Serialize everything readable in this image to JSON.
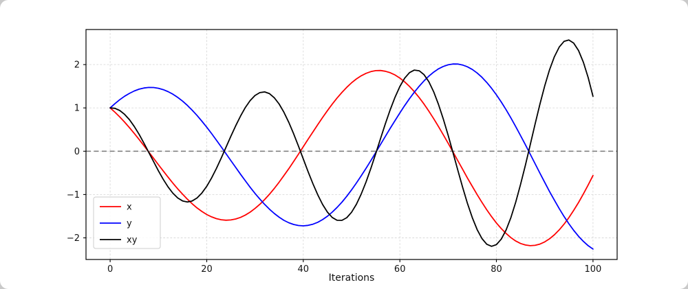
{
  "figure": {
    "background": "#ffffff",
    "page_background": "#c9c9c9"
  },
  "chart_data": {
    "type": "line",
    "title": "",
    "xlabel": "Iterations",
    "ylabel": "",
    "xlim": [
      -5,
      105
    ],
    "ylim": [
      -2.5,
      2.81
    ],
    "xticks": [
      0,
      20,
      40,
      60,
      80,
      100
    ],
    "yticks": [
      -2,
      -1,
      0,
      1,
      2
    ],
    "xtick_labels": [
      "0",
      "20",
      "40",
      "60",
      "80",
      "100"
    ],
    "ytick_labels": [
      "−2",
      "−1",
      "0",
      "1",
      "2"
    ],
    "grid": true,
    "legend_position": "lower left",
    "zero_line": {
      "y": 0,
      "style": "dashed",
      "color": "#808080"
    },
    "x": [
      0,
      1,
      2,
      3,
      4,
      5,
      6,
      7,
      8,
      9,
      10,
      11,
      12,
      13,
      14,
      15,
      16,
      17,
      18,
      19,
      20,
      21,
      22,
      23,
      24,
      25,
      26,
      27,
      28,
      29,
      30,
      31,
      32,
      33,
      34,
      35,
      36,
      37,
      38,
      39,
      40,
      41,
      42,
      43,
      44,
      45,
      46,
      47,
      48,
      49,
      50,
      51,
      52,
      53,
      54,
      55,
      56,
      57,
      58,
      59,
      60,
      61,
      62,
      63,
      64,
      65,
      66,
      67,
      68,
      69,
      70,
      71,
      72,
      73,
      74,
      75,
      76,
      77,
      78,
      79,
      80,
      81,
      82,
      83,
      84,
      85,
      86,
      87,
      88,
      89,
      90,
      91,
      92,
      93,
      94,
      95,
      96,
      97,
      98,
      99,
      100
    ],
    "series": [
      {
        "name": "x",
        "color": "#ff0000",
        "values": [
          1.0,
          0.9,
          0.79,
          0.671,
          0.544,
          0.41,
          0.271,
          0.128,
          -0.018,
          -0.165,
          -0.312,
          -0.457,
          -0.599,
          -0.737,
          -0.869,
          -0.993,
          -1.108,
          -1.214,
          -1.309,
          -1.391,
          -1.461,
          -1.516,
          -1.557,
          -1.583,
          -1.593,
          -1.587,
          -1.565,
          -1.528,
          -1.475,
          -1.406,
          -1.323,
          -1.226,
          -1.115,
          -0.993,
          -0.859,
          -0.715,
          -0.562,
          -0.403,
          -0.238,
          -0.069,
          0.103,
          0.275,
          0.447,
          0.615,
          0.779,
          0.937,
          1.087,
          1.228,
          1.358,
          1.476,
          1.58,
          1.669,
          1.742,
          1.799,
          1.839,
          1.86,
          1.863,
          1.847,
          1.813,
          1.76,
          1.69,
          1.601,
          1.496,
          1.375,
          1.238,
          1.088,
          0.926,
          0.753,
          0.57,
          0.38,
          0.184,
          -0.016,
          -0.217,
          -0.418,
          -0.618,
          -0.812,
          -1.001,
          -1.182,
          -1.353,
          -1.511,
          -1.657,
          -1.787,
          -1.9,
          -1.996,
          -2.073,
          -2.13,
          -2.166,
          -2.181,
          -2.174,
          -2.145,
          -2.095,
          -2.023,
          -1.93,
          -1.817,
          -1.685,
          -1.534,
          -1.367,
          -1.184,
          -0.988,
          -0.779,
          -0.561
        ]
      },
      {
        "name": "y",
        "color": "#0000ff",
        "values": [
          1.0,
          1.1,
          1.19,
          1.269,
          1.336,
          1.391,
          1.432,
          1.459,
          1.472,
          1.47,
          1.453,
          1.422,
          1.376,
          1.317,
          1.243,
          1.156,
          1.057,
          0.946,
          0.825,
          0.694,
          0.554,
          0.408,
          0.257,
          0.101,
          -0.057,
          -0.216,
          -0.375,
          -0.532,
          -0.684,
          -0.832,
          -0.973,
          -1.105,
          -1.228,
          -1.339,
          -1.438,
          -1.524,
          -1.596,
          -1.652,
          -1.692,
          -1.716,
          -1.723,
          -1.713,
          -1.685,
          -1.641,
          -1.579,
          -1.501,
          -1.407,
          -1.299,
          -1.176,
          -1.04,
          -0.893,
          -0.735,
          -0.568,
          -0.394,
          -0.214,
          -0.03,
          0.156,
          0.342,
          0.527,
          0.708,
          0.884,
          1.053,
          1.214,
          1.363,
          1.501,
          1.624,
          1.733,
          1.826,
          1.901,
          1.958,
          1.996,
          2.015,
          2.013,
          1.991,
          1.949,
          1.888,
          1.807,
          1.706,
          1.588,
          1.453,
          1.302,
          1.136,
          0.958,
          0.768,
          0.568,
          0.361,
          0.148,
          -0.069,
          -0.287,
          -0.505,
          -0.719,
          -0.929,
          -1.131,
          -1.324,
          -1.506,
          -1.674,
          -1.827,
          -1.964,
          -2.082,
          -2.181,
          -2.259
        ]
      },
      {
        "name": "xy",
        "color": "#000000",
        "values": [
          1.0,
          0.99,
          0.94,
          0.851,
          0.727,
          0.571,
          0.389,
          0.187,
          -0.026,
          -0.242,
          -0.453,
          -0.65,
          -0.825,
          -0.97,
          -1.079,
          -1.148,
          -1.171,
          -1.148,
          -1.079,
          -0.965,
          -0.81,
          -0.619,
          -0.4,
          -0.16,
          0.091,
          0.344,
          0.587,
          0.812,
          1.009,
          1.17,
          1.287,
          1.354,
          1.369,
          1.329,
          1.235,
          1.09,
          0.898,
          0.666,
          0.402,
          0.118,
          -0.178,
          -0.472,
          -0.753,
          -1.009,
          -1.23,
          -1.407,
          -1.53,
          -1.595,
          -1.597,
          -1.535,
          -1.41,
          -1.226,
          -0.989,
          -0.708,
          -0.393,
          -0.056,
          0.291,
          0.633,
          0.956,
          1.247,
          1.494,
          1.687,
          1.815,
          1.874,
          1.858,
          1.768,
          1.605,
          1.374,
          1.083,
          0.744,
          0.367,
          -0.031,
          -0.437,
          -0.833,
          -1.204,
          -1.534,
          -1.809,
          -2.017,
          -2.148,
          -2.196,
          -2.157,
          -2.03,
          -1.82,
          -1.532,
          -1.177,
          -0.768,
          -0.32,
          0.15,
          0.624,
          1.082,
          1.506,
          1.878,
          2.182,
          2.405,
          2.536,
          2.568,
          2.497,
          2.325,
          2.056,
          1.7,
          1.268
        ]
      }
    ]
  }
}
